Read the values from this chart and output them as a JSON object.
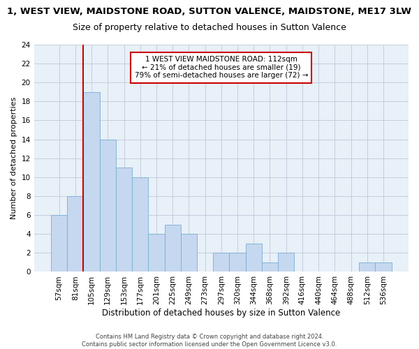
{
  "title": "1, WEST VIEW, MAIDSTONE ROAD, SUTTON VALENCE, MAIDSTONE, ME17 3LW",
  "subtitle": "Size of property relative to detached houses in Sutton Valence",
  "xlabel": "Distribution of detached houses by size in Sutton Valence",
  "ylabel": "Number of detached properties",
  "categories": [
    "57sqm",
    "81sqm",
    "105sqm",
    "129sqm",
    "153sqm",
    "177sqm",
    "201sqm",
    "225sqm",
    "249sqm",
    "273sqm",
    "297sqm",
    "320sqm",
    "344sqm",
    "368sqm",
    "392sqm",
    "416sqm",
    "440sqm",
    "464sqm",
    "488sqm",
    "512sqm",
    "536sqm"
  ],
  "values": [
    6,
    8,
    19,
    14,
    11,
    10,
    4,
    5,
    4,
    0,
    2,
    2,
    3,
    1,
    2,
    0,
    0,
    0,
    0,
    1,
    1
  ],
  "bar_color": "#c5d8ef",
  "bar_edge_color": "#7aadd4",
  "highlight_index": 2,
  "highlight_line_color": "#cc0000",
  "annotation_text": "1 WEST VIEW MAIDSTONE ROAD: 112sqm\n← 21% of detached houses are smaller (19)\n79% of semi-detached houses are larger (72) →",
  "annotation_box_color": "#ffffff",
  "annotation_border_color": "#cc0000",
  "ylim": [
    0,
    24
  ],
  "yticks": [
    0,
    2,
    4,
    6,
    8,
    10,
    12,
    14,
    16,
    18,
    20,
    22,
    24
  ],
  "background_color": "#e8f0f8",
  "footer_line1": "Contains HM Land Registry data © Crown copyright and database right 2024.",
  "footer_line2": "Contains public sector information licensed under the Open Government Licence v3.0.",
  "title_fontsize": 9.5,
  "subtitle_fontsize": 9,
  "xlabel_fontsize": 8.5,
  "ylabel_fontsize": 8,
  "tick_fontsize": 7.5,
  "annotation_fontsize": 7.5,
  "footer_fontsize": 6
}
